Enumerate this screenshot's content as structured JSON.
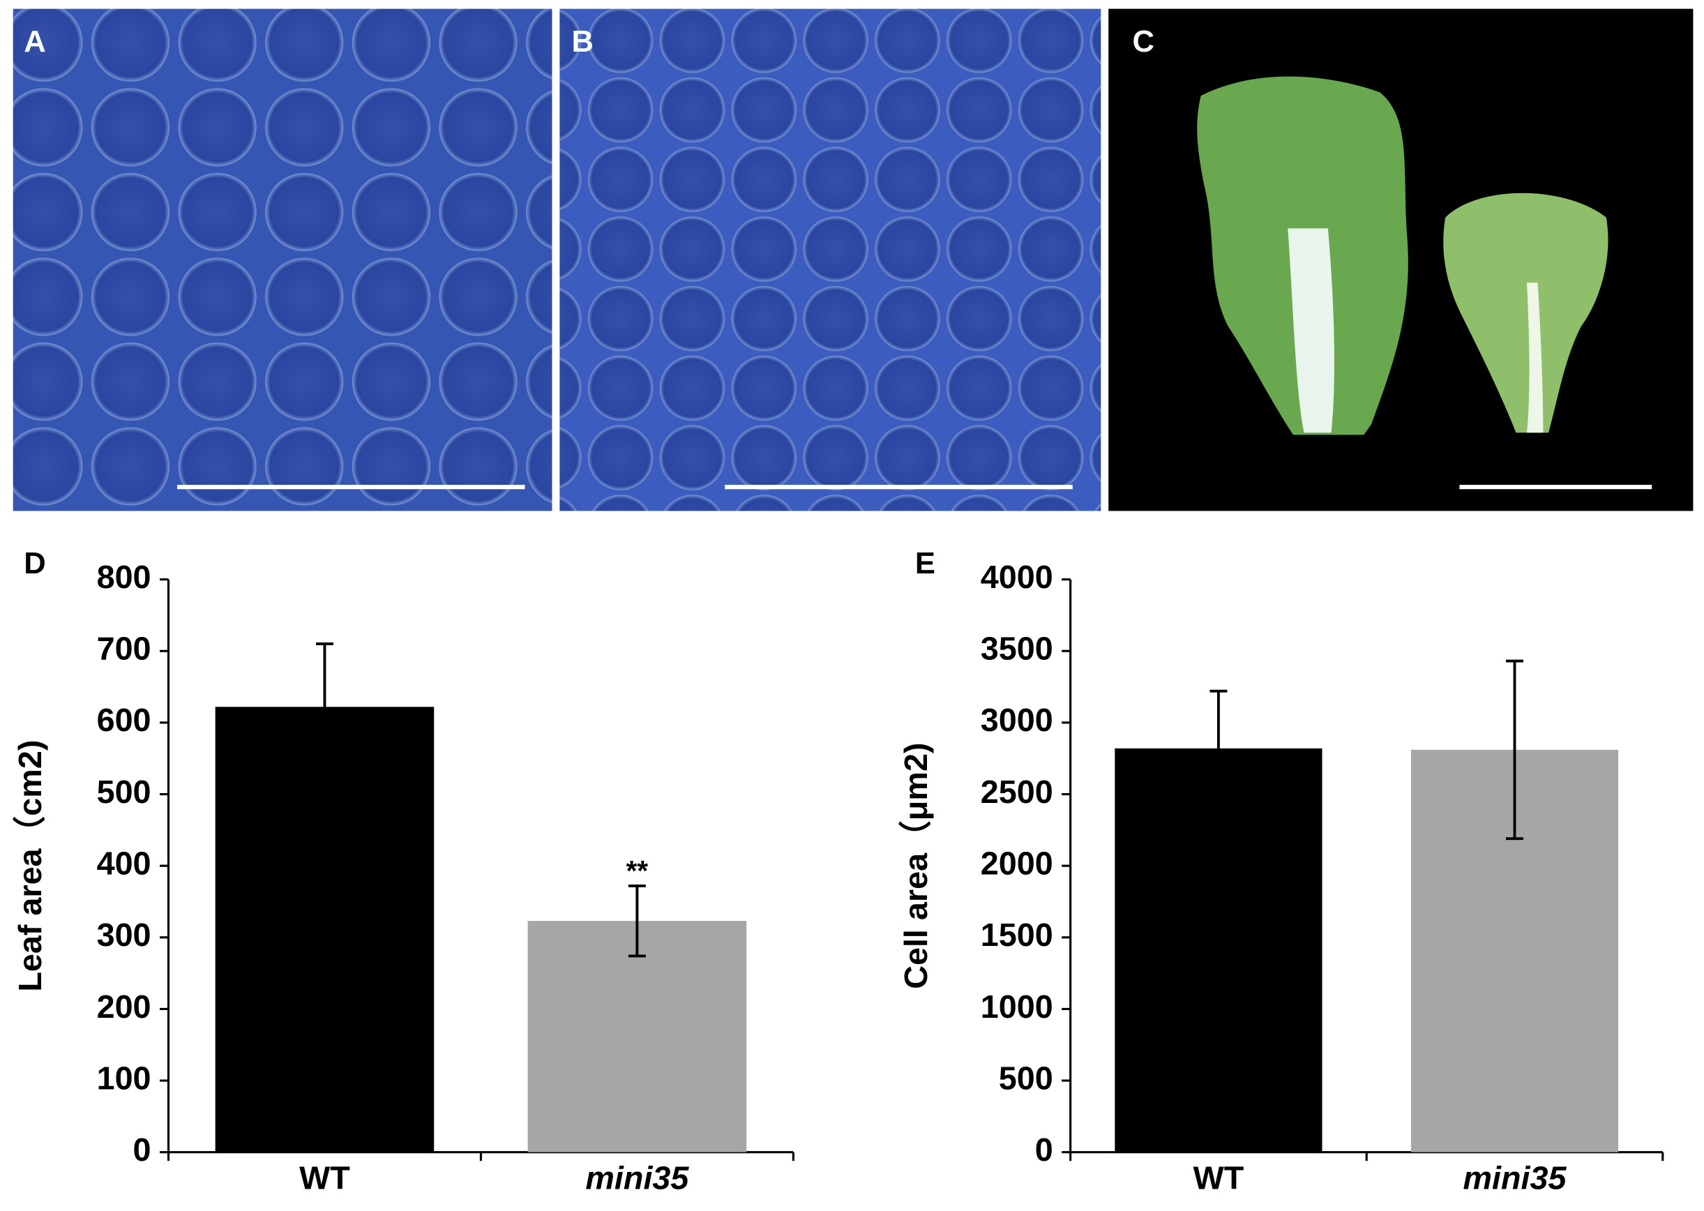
{
  "panels": [
    "A",
    "B",
    "C"
  ],
  "chart_data": [
    {
      "type": "bar",
      "panel": "D",
      "ylabel": "Leaf area（cm2)",
      "categories": [
        "WT",
        "mini35"
      ],
      "values": [
        622,
        323
      ],
      "errors": [
        88,
        49
      ],
      "value_annotations": [
        null,
        "**"
      ],
      "colors": [
        "#000000",
        "#a6a6a6"
      ],
      "ylim": [
        0,
        800
      ],
      "yticks": [
        0,
        100,
        200,
        300,
        400,
        500,
        600,
        700,
        800
      ]
    },
    {
      "type": "bar",
      "panel": "E",
      "ylabel": "Cell area（μm2)",
      "categories": [
        "WT",
        "mini35"
      ],
      "values": [
        2820,
        2810
      ],
      "errors": [
        400,
        620
      ],
      "colors": [
        "#000000",
        "#a6a6a6"
      ],
      "ylim": [
        0,
        4000
      ],
      "yticks": [
        0,
        500,
        1000,
        1500,
        2000,
        2500,
        3000,
        3500,
        4000
      ]
    }
  ]
}
